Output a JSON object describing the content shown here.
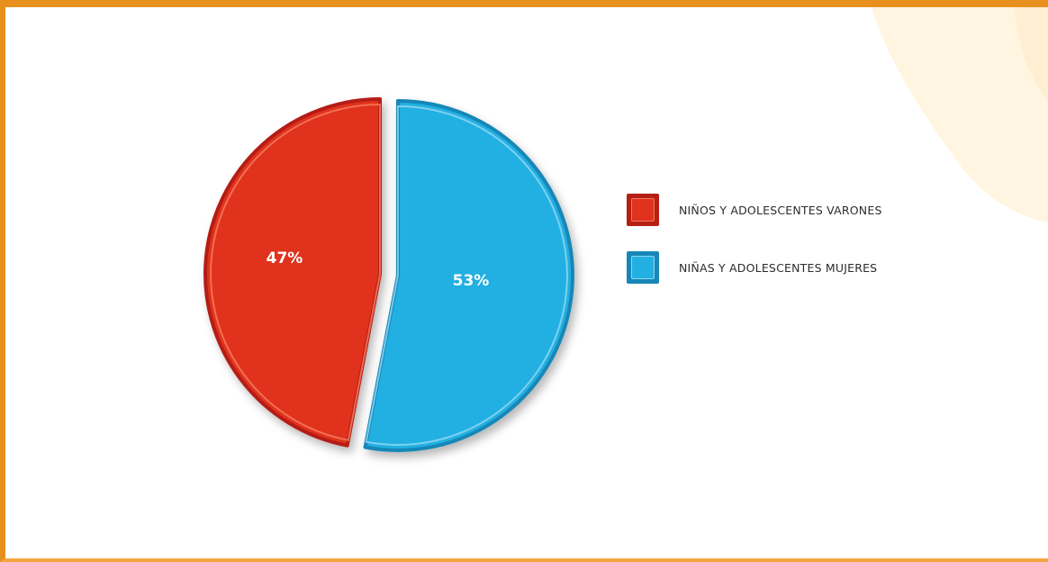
{
  "chart_data": {
    "type": "pie",
    "title": "",
    "slices": [
      {
        "label": "NIÑOS Y ADOLESCENTES VARONES",
        "value": 47,
        "display": "47%",
        "color": "#e0321f",
        "edge": "#b51f14",
        "highlight": "#f47a5e"
      },
      {
        "label": "NIÑAS Y ADOLESCENTES MUJERES",
        "value": 53,
        "display": "53%",
        "color": "#22b0e2",
        "edge": "#1787b7",
        "highlight": "#8ed6f2"
      }
    ],
    "legend_position": "right"
  },
  "colors": {
    "frame": "#e8901e",
    "deco_shape": "#fff3dc"
  }
}
